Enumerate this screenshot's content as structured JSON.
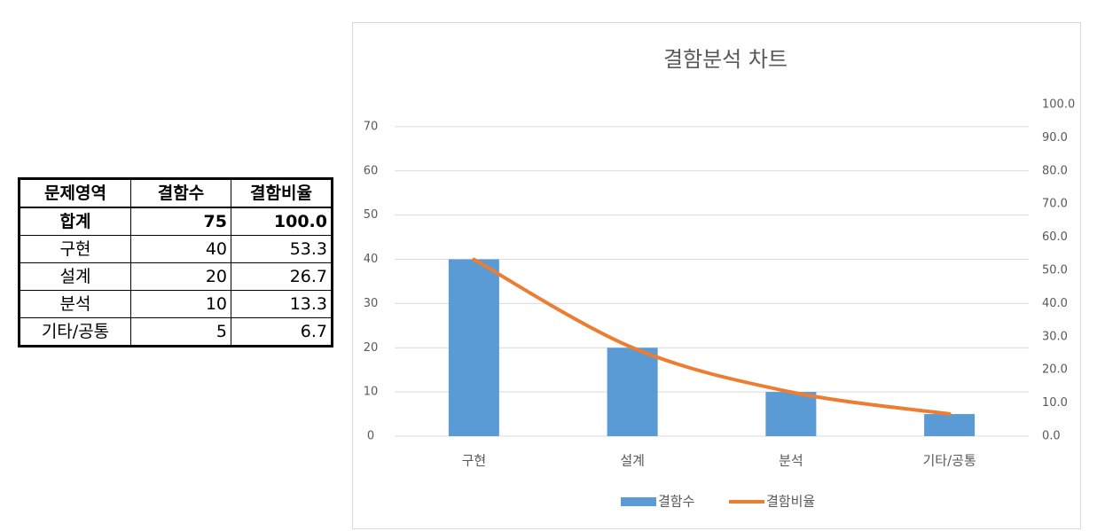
{
  "table": {
    "header": [
      "문제영역",
      "결함수",
      "결함비율"
    ],
    "rows": [
      [
        "합계",
        "75",
        "100.0"
      ],
      [
        "구현",
        "40",
        "53.3"
      ],
      [
        "설계",
        "20",
        "26.7"
      ],
      [
        "분석",
        "10",
        "13.3"
      ],
      [
        "기타/공통",
        "5",
        "6.7"
      ]
    ]
  },
  "chart_data": {
    "type": "bar",
    "title": "결함분석 차트",
    "categories": [
      "구현",
      "설계",
      "분석",
      "기타/공통"
    ],
    "series": [
      {
        "name": "결함수",
        "color": "#5b9bd5",
        "values": [
          40,
          20,
          10,
          5
        ]
      },
      {
        "name": "결함비율",
        "color": "#ed7d31",
        "type": "line",
        "smooth": true,
        "axis": "y2",
        "values": [
          53.3,
          26.7,
          13.3,
          6.7
        ]
      }
    ],
    "ylim": [
      0,
      75
    ],
    "yticks": [
      0,
      10,
      20,
      30,
      40,
      50,
      60,
      70
    ],
    "y2lim": [
      0,
      100
    ],
    "y2ticks": [
      {
        "value": 0,
        "label": "0.0"
      },
      {
        "value": 10,
        "label": "10.0"
      },
      {
        "value": 20,
        "label": "20.0"
      },
      {
        "value": 30,
        "label": "30.0"
      },
      {
        "value": 40,
        "label": "40.0"
      },
      {
        "value": 50,
        "label": "50.0"
      },
      {
        "value": 60,
        "label": "60.0"
      },
      {
        "value": 70,
        "label": "70.0"
      },
      {
        "value": 80,
        "label": "80.0"
      },
      {
        "value": 90,
        "label": "90.0"
      },
      {
        "value": 100,
        "label": "100.0"
      }
    ],
    "grid": true,
    "legend": "bottom"
  }
}
